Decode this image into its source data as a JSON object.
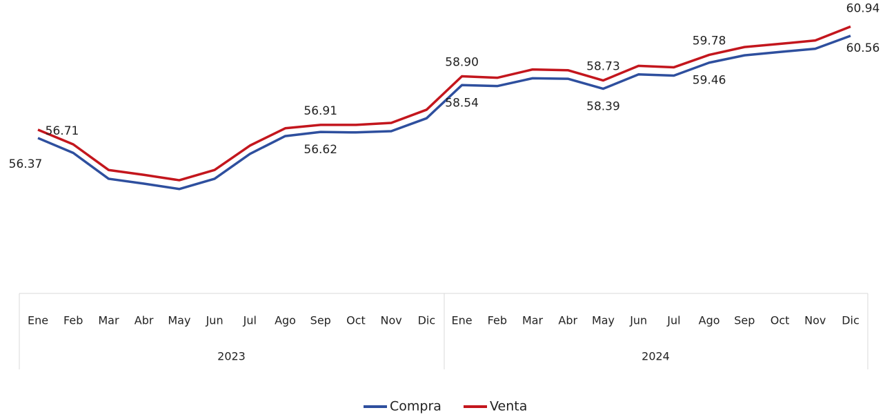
{
  "chart_data": {
    "type": "line",
    "categories": [
      "Ene",
      "Feb",
      "Mar",
      "Abr",
      "May",
      "Jun",
      "Jul",
      "Ago",
      "Sep",
      "Oct",
      "Nov",
      "Dic",
      "Ene",
      "Feb",
      "Mar",
      "Abr",
      "May",
      "Jun",
      "Jul",
      "Ago",
      "Sep",
      "Oct",
      "Nov",
      "Dic"
    ],
    "groups": [
      "2023",
      "2024"
    ],
    "ylim": [
      50,
      62
    ],
    "series": [
      {
        "name": "Compra",
        "color": "#2e4f9e",
        "values": [
          56.37,
          55.76,
          54.7,
          54.5,
          54.28,
          54.7,
          55.72,
          56.45,
          56.62,
          56.6,
          56.65,
          57.18,
          58.54,
          58.5,
          58.82,
          58.8,
          58.39,
          58.98,
          58.93,
          59.46,
          59.76,
          59.9,
          60.03,
          60.56
        ],
        "value_labels": [
          "56.37",
          null,
          null,
          null,
          null,
          null,
          null,
          null,
          "56.62",
          null,
          null,
          null,
          "58.54",
          null,
          null,
          null,
          "58.39",
          null,
          null,
          "59.46",
          null,
          null,
          null,
          "60.56"
        ]
      },
      {
        "name": "Venta",
        "color": "#c3161d",
        "values": [
          56.71,
          56.11,
          55.06,
          54.86,
          54.64,
          55.06,
          56.06,
          56.77,
          56.91,
          56.91,
          56.99,
          57.53,
          58.9,
          58.84,
          59.18,
          59.15,
          58.73,
          59.33,
          59.27,
          59.78,
          60.1,
          60.23,
          60.37,
          60.94
        ],
        "value_labels": [
          "56.71",
          null,
          null,
          null,
          null,
          null,
          null,
          null,
          "56.91",
          null,
          null,
          null,
          "58.90",
          null,
          null,
          null,
          "58.73",
          null,
          null,
          "59.78",
          null,
          null,
          null,
          "60.94"
        ]
      }
    ]
  }
}
